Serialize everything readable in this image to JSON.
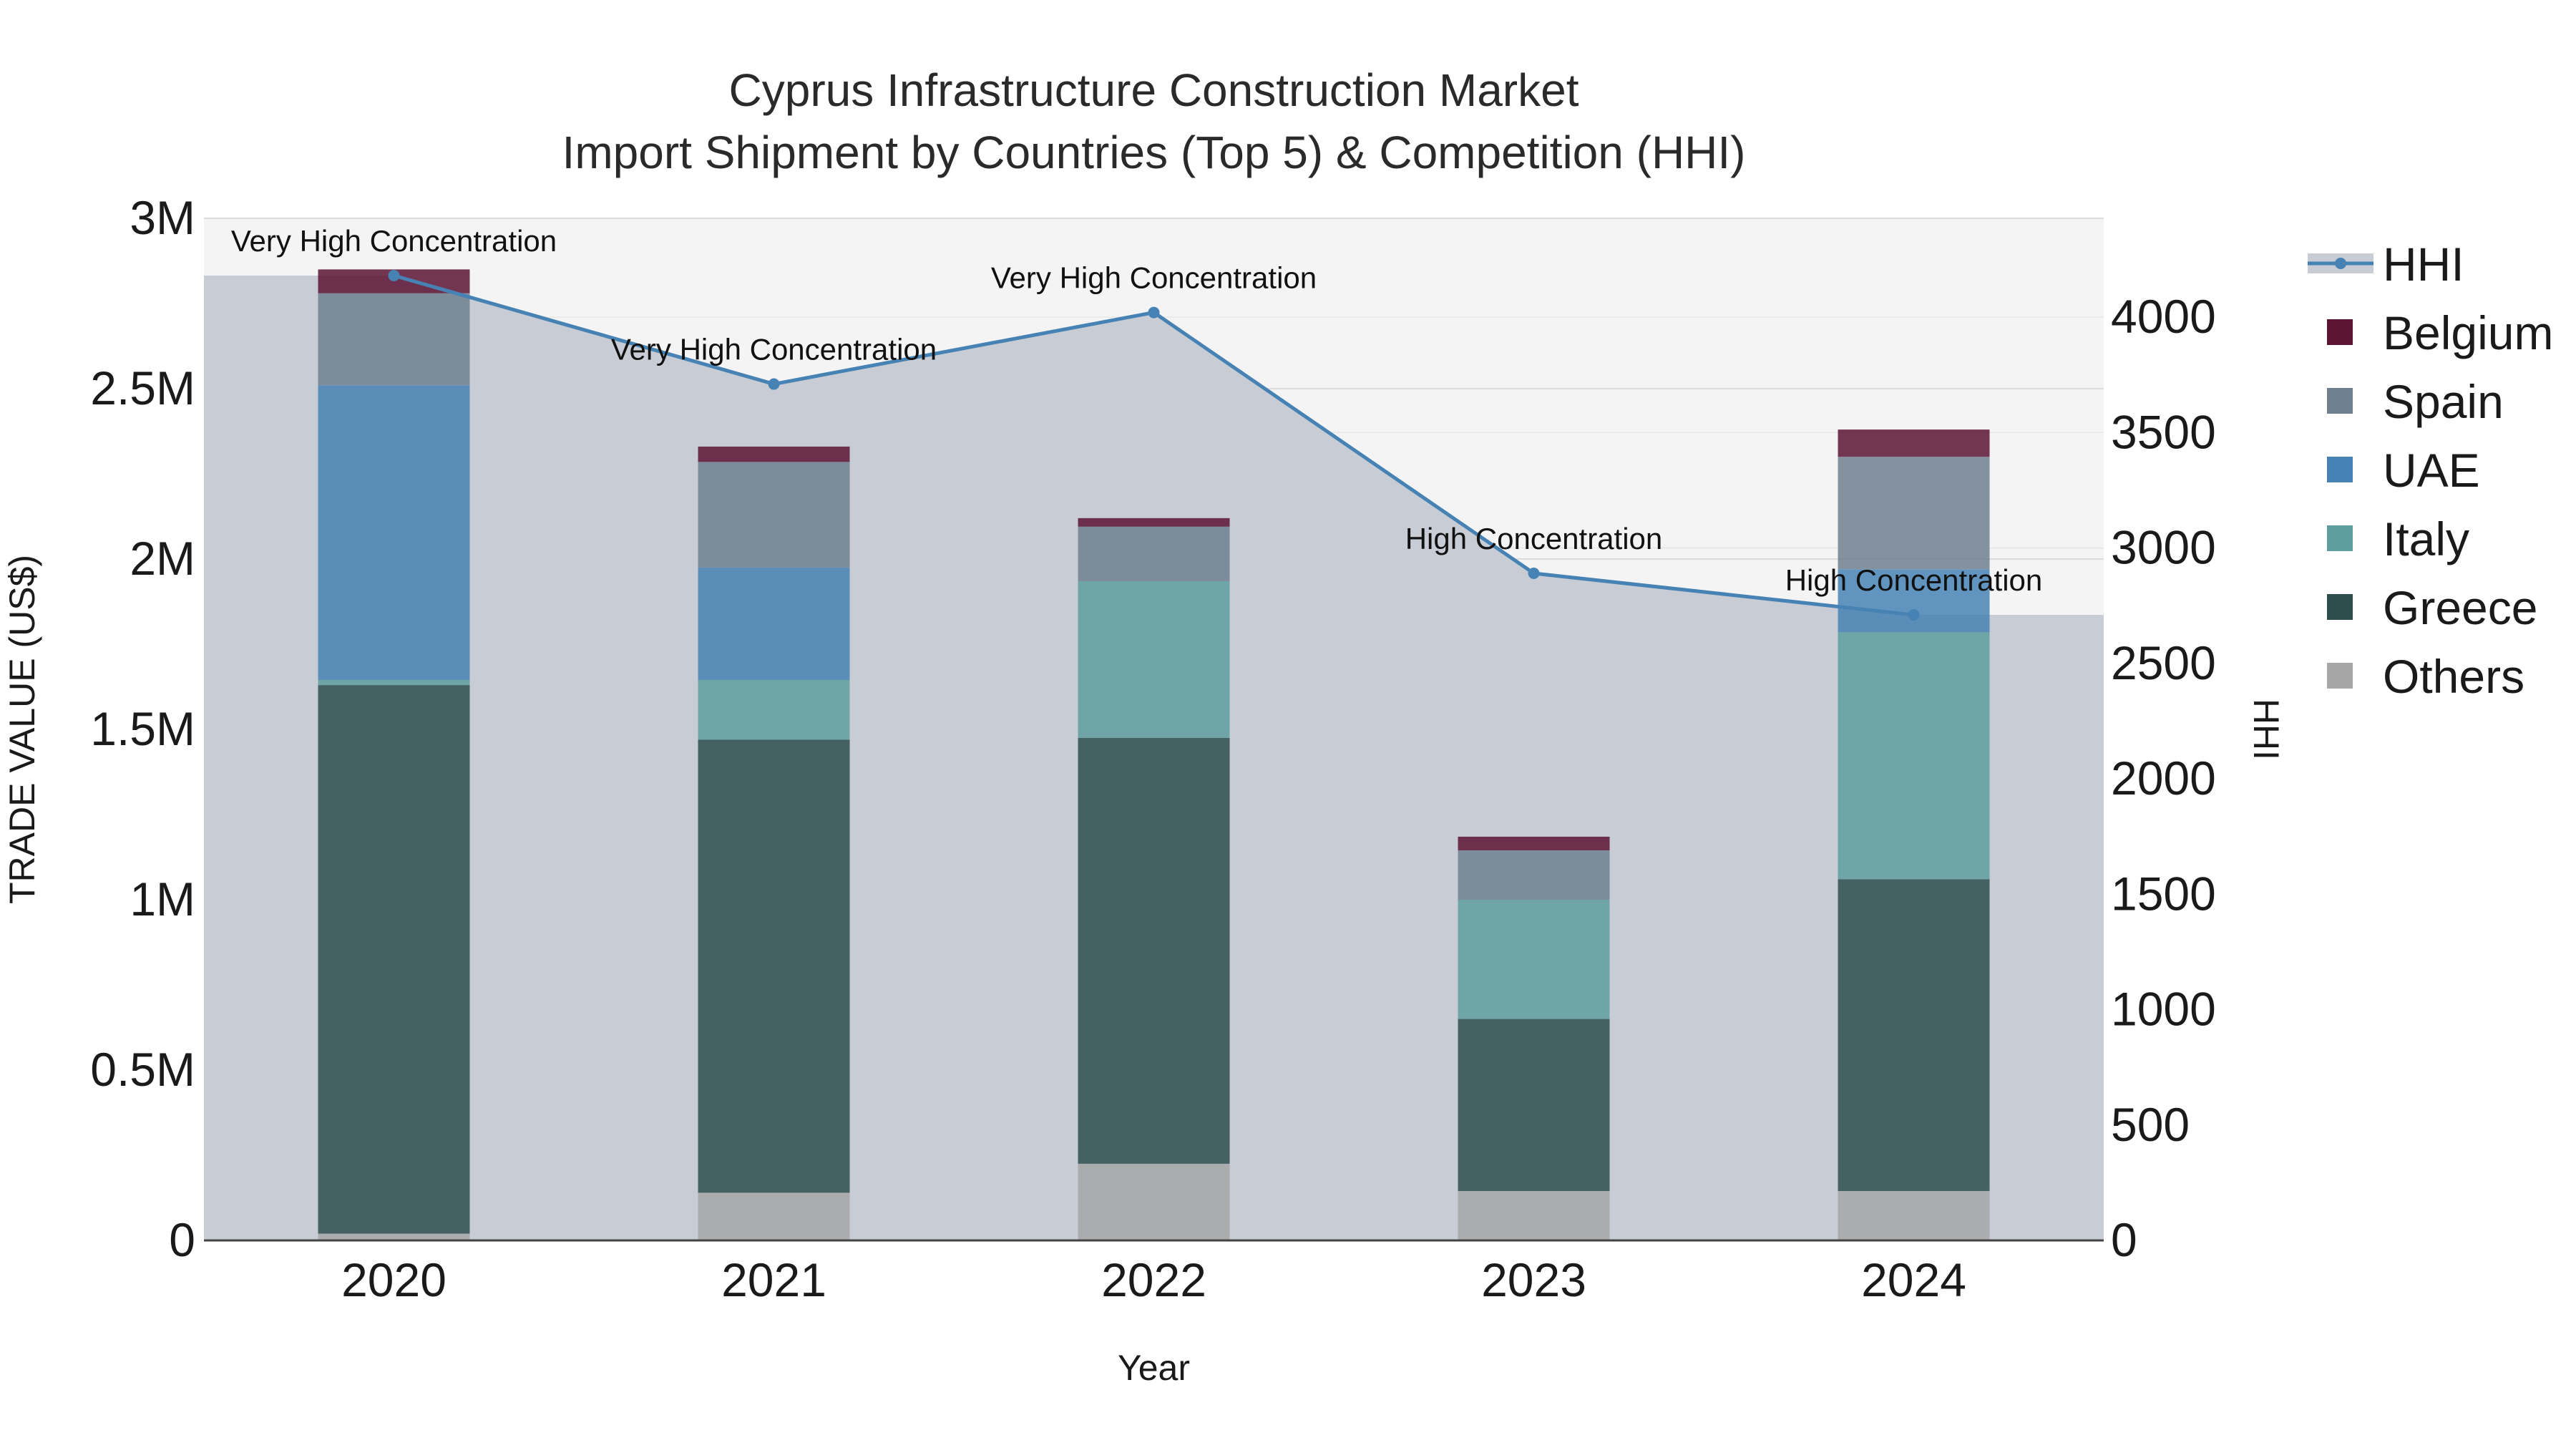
{
  "chart_data": {
    "type": "bar",
    "title_lines": [
      "Cyprus Infrastructure Construction Market",
      "Import Shipment by Countries (Top 5) & Competition (HHI)"
    ],
    "xlabel": "Year",
    "ylabel": "TRADE VALUE (US$)",
    "y2label": "HHI",
    "categories": [
      "2020",
      "2021",
      "2022",
      "2023",
      "2024"
    ],
    "ylim": [
      0,
      3000000
    ],
    "y_ticks": [
      0,
      500000,
      1000000,
      1500000,
      2000000,
      2500000,
      3000000
    ],
    "y_tick_labels": [
      "0",
      "0.5M",
      "1M",
      "1.5M",
      "2M",
      "2.5M",
      "3M"
    ],
    "y2lim": [
      0,
      4428
    ],
    "y2_ticks": [
      0,
      500,
      1000,
      1500,
      2000,
      2500,
      3000,
      3500,
      4000
    ],
    "y2_tick_labels": [
      "0",
      "500",
      "1000",
      "1500",
      "2000",
      "2500",
      "3000",
      "3500",
      "4000"
    ],
    "series": [
      {
        "name": "Others",
        "color": "#a6a6a6",
        "values": [
          20000,
          140000,
          225000,
          145000,
          145000
        ]
      },
      {
        "name": "Greece",
        "color": "#2e4e4e",
        "values": [
          1610000,
          1330000,
          1250000,
          505000,
          915000
        ]
      },
      {
        "name": "Italy",
        "color": "#5f9e9e",
        "values": [
          15000,
          175000,
          460000,
          350000,
          725000
        ]
      },
      {
        "name": "UAE",
        "color": "#4682b4",
        "values": [
          865000,
          330000,
          0,
          0,
          185000
        ]
      },
      {
        "name": "Spain",
        "color": "#708090",
        "values": [
          270000,
          310000,
          160000,
          145000,
          330000
        ]
      },
      {
        "name": "Belgium",
        "color": "#5c1435",
        "values": [
          70000,
          45000,
          25000,
          40000,
          80000
        ]
      }
    ],
    "hhi": {
      "name": "HHI",
      "color": "#4682b4",
      "values": [
        4180,
        3710,
        4020,
        2890,
        2710
      ],
      "annotations": [
        "Very High Concentration",
        "Very High Concentration",
        "Very High Concentration",
        "High Concentration",
        "High Concentration"
      ]
    },
    "legend_order": [
      "HHI",
      "Belgium",
      "Spain",
      "UAE",
      "Italy",
      "Greece",
      "Others"
    ],
    "legend_position": "right",
    "grid": true
  }
}
